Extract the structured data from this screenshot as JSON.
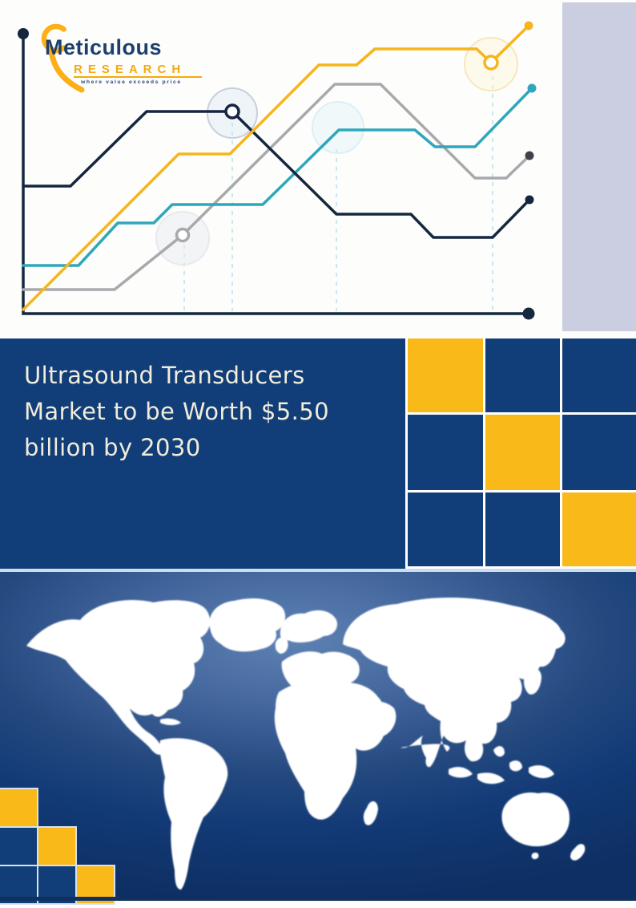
{
  "brand": {
    "name": "Meticulous",
    "division": "RESEARCH",
    "tagline": "where value exceeds price"
  },
  "headline": {
    "full_text": "Ultrasound Transducers Market to be Worth $5.50 billion by 2030",
    "lines": [
      "Ultrasound Transducers",
      "Market to be Worth $5.50",
      "billion by 2030"
    ]
  },
  "decorative_chart": {
    "type": "line",
    "purpose": "decorative trend lines, no axis labels or values shown",
    "series": [
      {
        "name": "navy-line",
        "color": "#15263F"
      },
      {
        "name": "gold-line",
        "color": "#F6B51C"
      },
      {
        "name": "gray-line",
        "color": "#A7A9AC"
      },
      {
        "name": "teal-line",
        "color": "#2EA7BC"
      }
    ]
  },
  "mosaic_grid": {
    "rows": [
      [
        "yellow",
        "navy",
        "navy"
      ],
      [
        "navy",
        "yellow",
        "navy"
      ],
      [
        "navy",
        "navy",
        "yellow"
      ]
    ]
  },
  "staircase_squares": {
    "rows": [
      [
        "yellow"
      ],
      [
        "navy",
        "yellow"
      ],
      [
        "navy",
        "navy",
        "yellow"
      ]
    ]
  },
  "colors": {
    "section_navy": "#113E78",
    "accent_yellow": "#F9B918",
    "lavender_panel": "#CBCDE0",
    "separator_light_blue": "#CBDDEC",
    "headline_text": "#F1ECDB",
    "map_highlight": "#5F82B3",
    "logo_navy": "#1C3F6E",
    "logo_gold": "#F5A90D"
  }
}
